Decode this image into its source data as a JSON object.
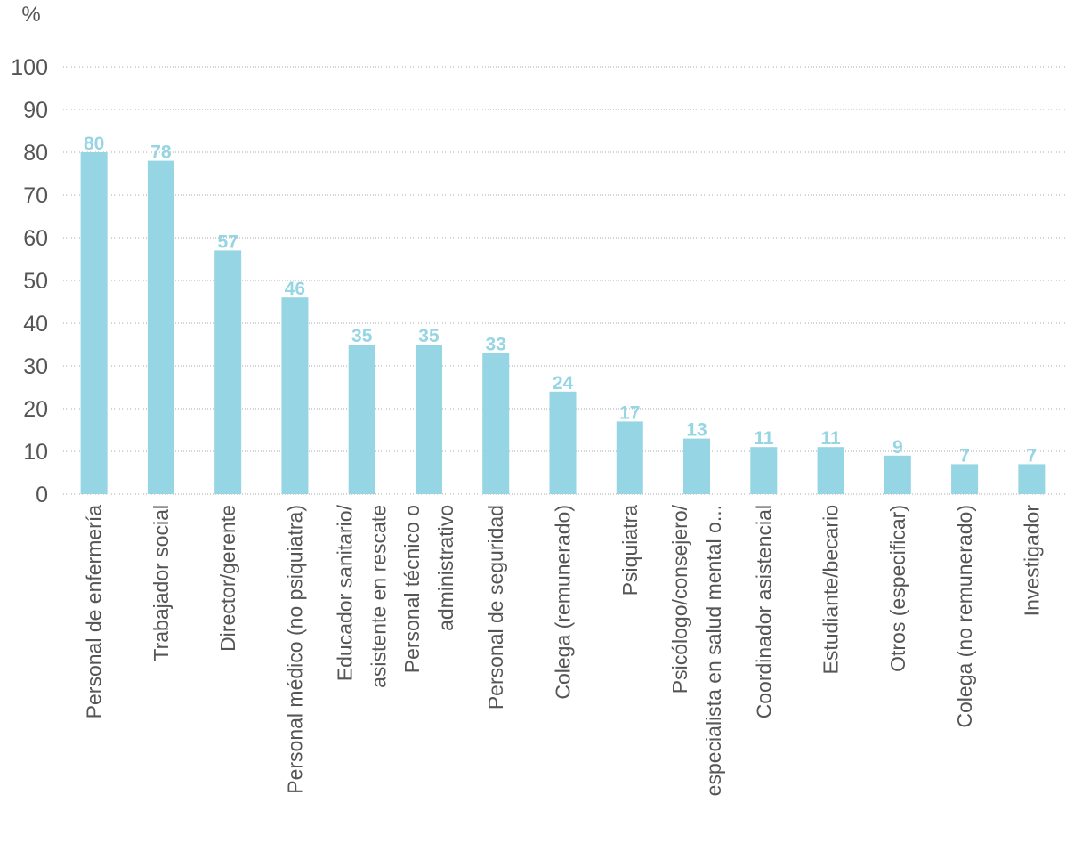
{
  "chart_data": {
    "type": "bar",
    "y_label": "%",
    "categories": [
      [
        "Personal de enfermería"
      ],
      [
        "Trabajador social"
      ],
      [
        "Director/gerente"
      ],
      [
        "Personal médico (no psiquiatra)"
      ],
      [
        "Educador sanitario/",
        "asistente en rescate"
      ],
      [
        "Personal técnico o",
        "administrativo"
      ],
      [
        "Personal de seguridad"
      ],
      [
        "Colega (remunerado)"
      ],
      [
        "Psiquiatra"
      ],
      [
        "Psicólogo/consejero/",
        "especialista en salud mental o..."
      ],
      [
        "Coordinador asistencial"
      ],
      [
        "Estudiante/becario"
      ],
      [
        "Otros (especificar)"
      ],
      [
        "Colega (no remunerado)"
      ],
      [
        "Investigador"
      ]
    ],
    "values": [
      80,
      78,
      57,
      46,
      35,
      35,
      33,
      24,
      17,
      13,
      11,
      11,
      9,
      7,
      7
    ],
    "color": "#96d5e3",
    "label_color": "#96d5e3",
    "ylim": [
      0,
      100
    ],
    "yticks": [
      0,
      10,
      20,
      30,
      40,
      50,
      60,
      70,
      80,
      90,
      100
    ],
    "grid": true
  }
}
